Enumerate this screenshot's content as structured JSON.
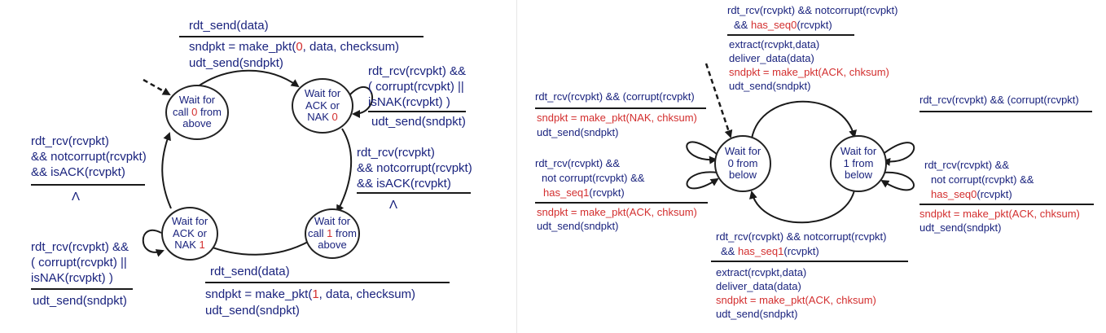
{
  "left": {
    "states": {
      "wait_call0": {
        "l1": "Wait for",
        "l2": "call ",
        "num": "0",
        "l2b": " from",
        "l3": "above"
      },
      "wait_ack0": {
        "l1": "Wait for",
        "l2": "ACK or",
        "l3a": "NAK ",
        "num": "0"
      },
      "wait_call1": {
        "l1": "Wait for",
        "l2": "call ",
        "num": "1",
        "l2b": " from",
        "l3": "above"
      },
      "wait_ack1": {
        "l1": "Wait for",
        "l2": "ACK or",
        "l3a": "NAK ",
        "num": "1"
      }
    },
    "top": {
      "event": "rdt_send(data)",
      "act1_a": "sndpkt = make_pkt(",
      "act1_num": "0",
      "act1_b": ", data, checksum)",
      "act2": "udt_send(sndpkt)"
    },
    "self_ack0": {
      "l1": "rdt_rcv(rcvpkt) &&",
      "l2": "( corrupt(rcvpkt) ||",
      "l3": "isNAK(rcvpkt) )",
      "act": "udt_send(sndpkt)"
    },
    "right_side": {
      "l1": "rdt_rcv(rcvpkt)",
      "l2": "&& notcorrupt(rcvpkt)",
      "l3": "&& isACK(rcvpkt)",
      "act": "Λ"
    },
    "left_side": {
      "l1": "rdt_rcv(rcvpkt)",
      "l2": "&& notcorrupt(rcvpkt)",
      "l3": "&& isACK(rcvpkt)",
      "act": "Λ"
    },
    "self_ack1": {
      "l1": "rdt_rcv(rcvpkt) &&",
      "l2": "( corrupt(rcvpkt) ||",
      "l3": "isNAK(rcvpkt) )",
      "act": "udt_send(sndpkt)"
    },
    "bottom": {
      "event": "rdt_send(data)",
      "act1_a": "sndpkt = make_pkt(",
      "act1_num": "1",
      "act1_b": ", data, checksum)",
      "act2": "udt_send(sndpkt)"
    }
  },
  "right": {
    "states": {
      "wait0": {
        "l1": "Wait for",
        "l2": "0 from",
        "l3": "below"
      },
      "wait1": {
        "l1": "Wait for",
        "l2": "1 from",
        "l3": "below"
      }
    },
    "top": {
      "l1": "rdt_rcv(rcvpkt) && notcorrupt(rcvpkt)",
      "l2_a": "&& ",
      "l2_red": "has_seq0",
      "l2_b": "(rcvpkt)",
      "act1": "extract(rcvpkt,data)",
      "act2": "deliver_data(data)",
      "act3": "sndpkt = make_pkt(ACK, chksum)",
      "act4": "udt_send(sndpkt)"
    },
    "left_corrupt": {
      "l1": "rdt_rcv(rcvpkt) && (corrupt(rcvpkt)",
      "act1": "sndpkt = make_pkt(NAK, chksum)",
      "act2": "udt_send(sndpkt)"
    },
    "left_seq1": {
      "l1": "rdt_rcv(rcvpkt) &&",
      "l2": "not corrupt(rcvpkt) &&",
      "l3_red": "has_seq1",
      "l3_b": "(rcvpkt)",
      "act1": "sndpkt = make_pkt(ACK, chksum)",
      "act2": "udt_send(sndpkt)"
    },
    "right_corrupt": {
      "l1": "rdt_rcv(rcvpkt) && (corrupt(rcvpkt)"
    },
    "right_seq0": {
      "l1": "rdt_rcv(rcvpkt) &&",
      "l2": "not corrupt(rcvpkt) &&",
      "l3_red": "has_seq0",
      "l3_b": "(rcvpkt)",
      "act1": "sndpkt = make_pkt(ACK, chksum)",
      "act2": "udt_send(sndpkt)"
    },
    "bottom": {
      "l1": "rdt_rcv(rcvpkt) && notcorrupt(rcvpkt)",
      "l2_a": "&& ",
      "l2_red": "has_seq1",
      "l2_b": "(rcvpkt)",
      "act1": "extract(rcvpkt,data)",
      "act2": "deliver_data(data)",
      "act3": "sndpkt = make_pkt(ACK, chksum)",
      "act4": "udt_send(sndpkt)"
    }
  },
  "colors": {
    "text": "#1a237e",
    "highlight": "#d32f2f",
    "line": "#1a1a1a"
  }
}
